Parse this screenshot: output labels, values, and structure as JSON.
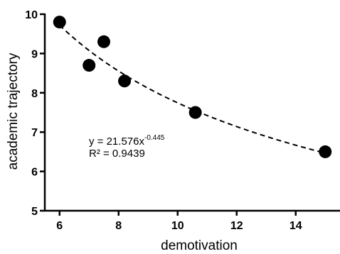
{
  "chart_data": {
    "type": "scatter",
    "xlabel": "demotivation",
    "ylabel": "academic trajectory",
    "xlim": [
      5.5,
      15.5
    ],
    "ylim": [
      5,
      10
    ],
    "x_ticks": [
      6,
      8,
      10,
      12,
      14
    ],
    "y_ticks": [
      5,
      6,
      7,
      8,
      9,
      10
    ],
    "grid": false,
    "points": [
      {
        "x": 6.0,
        "y": 9.8
      },
      {
        "x": 7.0,
        "y": 8.7
      },
      {
        "x": 7.5,
        "y": 9.3
      },
      {
        "x": 8.2,
        "y": 8.3
      },
      {
        "x": 10.6,
        "y": 7.5
      },
      {
        "x": 15.0,
        "y": 6.5
      }
    ],
    "trendline": {
      "type": "power",
      "coefficient": 21.576,
      "exponent": -0.445,
      "style": "dashed"
    },
    "annotation": {
      "equation_main": "y = 21.576x",
      "equation_exponent": "-0.445",
      "r_squared": "R² = 0.9439"
    }
  }
}
